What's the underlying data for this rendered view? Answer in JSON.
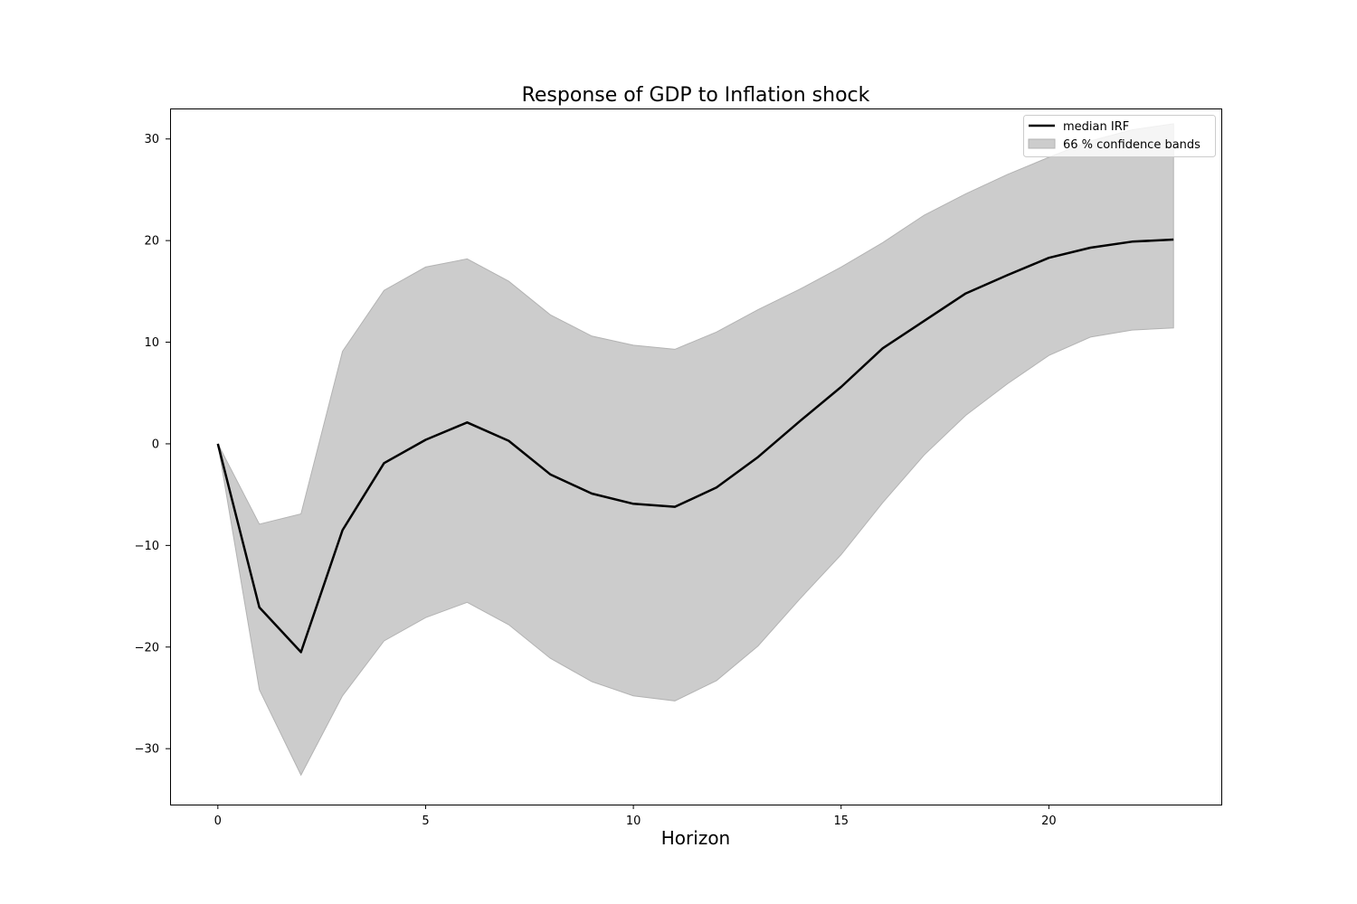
{
  "chart_data": {
    "type": "line",
    "title": "Response of GDP to Inflation shock",
    "xlabel": "Horizon",
    "ylabel": "",
    "xlim": [
      -1.15,
      24.15
    ],
    "ylim": [
      -35.5,
      33
    ],
    "xticks": [
      0,
      5,
      10,
      15,
      20
    ],
    "yticks": [
      -30,
      -20,
      -10,
      0,
      10,
      20,
      30
    ],
    "ytick_labels": [
      "−30",
      "−20",
      "−10",
      "0",
      "10",
      "20",
      "30"
    ],
    "grid": false,
    "legend_position": "top-right",
    "x": [
      0,
      1,
      2,
      3,
      4,
      5,
      6,
      7,
      8,
      9,
      10,
      11,
      12,
      13,
      14,
      15,
      16,
      17,
      18,
      19,
      20,
      21,
      22,
      23
    ],
    "series": [
      {
        "name": "median IRF",
        "kind": "line",
        "color": "#000000",
        "values": [
          0,
          -16.1,
          -20.5,
          -8.5,
          -1.9,
          0.4,
          2.1,
          0.3,
          -3.0,
          -4.9,
          -5.9,
          -6.2,
          -4.3,
          -1.3,
          2.2,
          5.6,
          9.4,
          12.1,
          14.8,
          16.6,
          18.3,
          19.3,
          19.9,
          20.1
        ]
      },
      {
        "name": "66 % confidence bands",
        "kind": "band",
        "color": "#cccccc",
        "edge_color": "#b3b3b3",
        "lower": [
          0,
          -24.2,
          -32.6,
          -24.8,
          -19.4,
          -17.1,
          -15.6,
          -17.8,
          -21.1,
          -23.4,
          -24.8,
          -25.3,
          -23.3,
          -19.9,
          -15.3,
          -10.9,
          -5.8,
          -1.1,
          2.8,
          5.9,
          8.7,
          10.5,
          11.2,
          11.4
        ],
        "upper": [
          0,
          -7.9,
          -6.9,
          9.1,
          15.1,
          17.4,
          18.2,
          16.0,
          12.7,
          10.6,
          9.7,
          9.3,
          11.0,
          13.2,
          15.2,
          17.4,
          19.8,
          22.5,
          24.6,
          26.5,
          28.2,
          29.8,
          30.9,
          31.5
        ]
      }
    ]
  }
}
